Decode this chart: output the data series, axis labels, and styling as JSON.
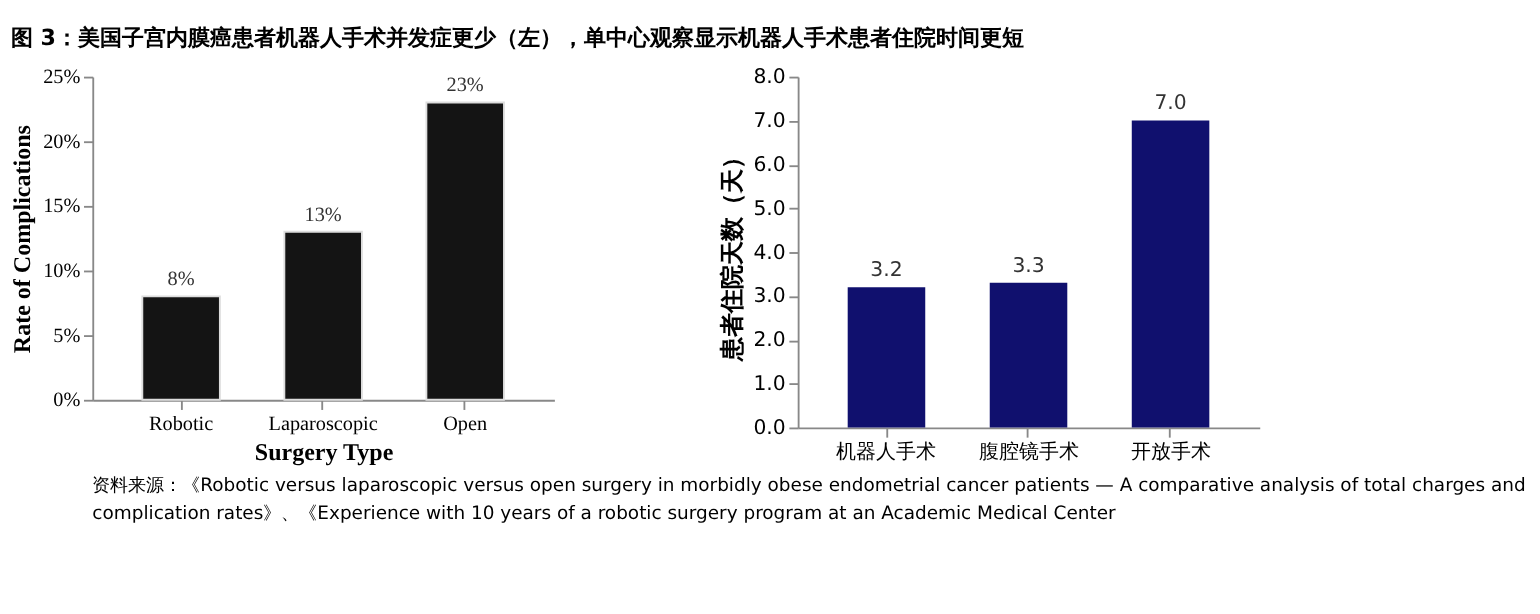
{
  "chart_data": [
    {
      "type": "bar",
      "title": "图 3：美国子宫内膜癌患者机器人手术并发症更少（左），单中心观察显示机器人手术患者住院时间更短",
      "annotations": [
        "资料来源：《Robotic versus laparoscopic versus open surgery in morbidly obese endometrial cancer patients — A comparative analysis of total charges and",
        "complication rates》、《Experience with 10 years of a robotic surgery program at an Academic Medical Center"
      ],
      "xlabel": "Surgery Type",
      "ylabel": "Rate of Complications",
      "categories": [
        "Robotic",
        "Laparoscopic",
        "Open"
      ],
      "values": [
        8,
        13,
        23
      ],
      "value_labels": [
        "8%",
        "13%",
        "23%"
      ],
      "color": "#141414",
      "ylim": [
        0,
        25
      ],
      "yticks": [
        {
          "value": 0,
          "label": "0%"
        },
        {
          "value": 5,
          "label": "5%"
        },
        {
          "value": 10,
          "label": "10%"
        },
        {
          "value": 15,
          "label": "15%"
        },
        {
          "value": 20,
          "label": "20%"
        },
        {
          "value": 25,
          "label": "25%"
        }
      ],
      "grid": false
    },
    {
      "type": "bar",
      "ylabel": "患者住院天数（天）",
      "categories": [
        "机器人手术",
        "腹腔镜手术",
        "开放手术"
      ],
      "values": [
        3.2,
        3.3,
        7.0
      ],
      "value_labels": [
        "3.2",
        "3.3",
        "7.0"
      ],
      "color": "#10106e",
      "ylim": [
        0,
        8
      ],
      "yticks": [
        {
          "value": 0,
          "label": "0.0"
        },
        {
          "value": 1,
          "label": "1.0"
        },
        {
          "value": 2,
          "label": "2.0"
        },
        {
          "value": 3,
          "label": "3.0"
        },
        {
          "value": 4,
          "label": "4.0"
        },
        {
          "value": 5,
          "label": "5.0"
        },
        {
          "value": 6,
          "label": "6.0"
        },
        {
          "value": 7,
          "label": "7.0"
        },
        {
          "value": 8,
          "label": "8.0"
        }
      ],
      "grid": false
    }
  ]
}
